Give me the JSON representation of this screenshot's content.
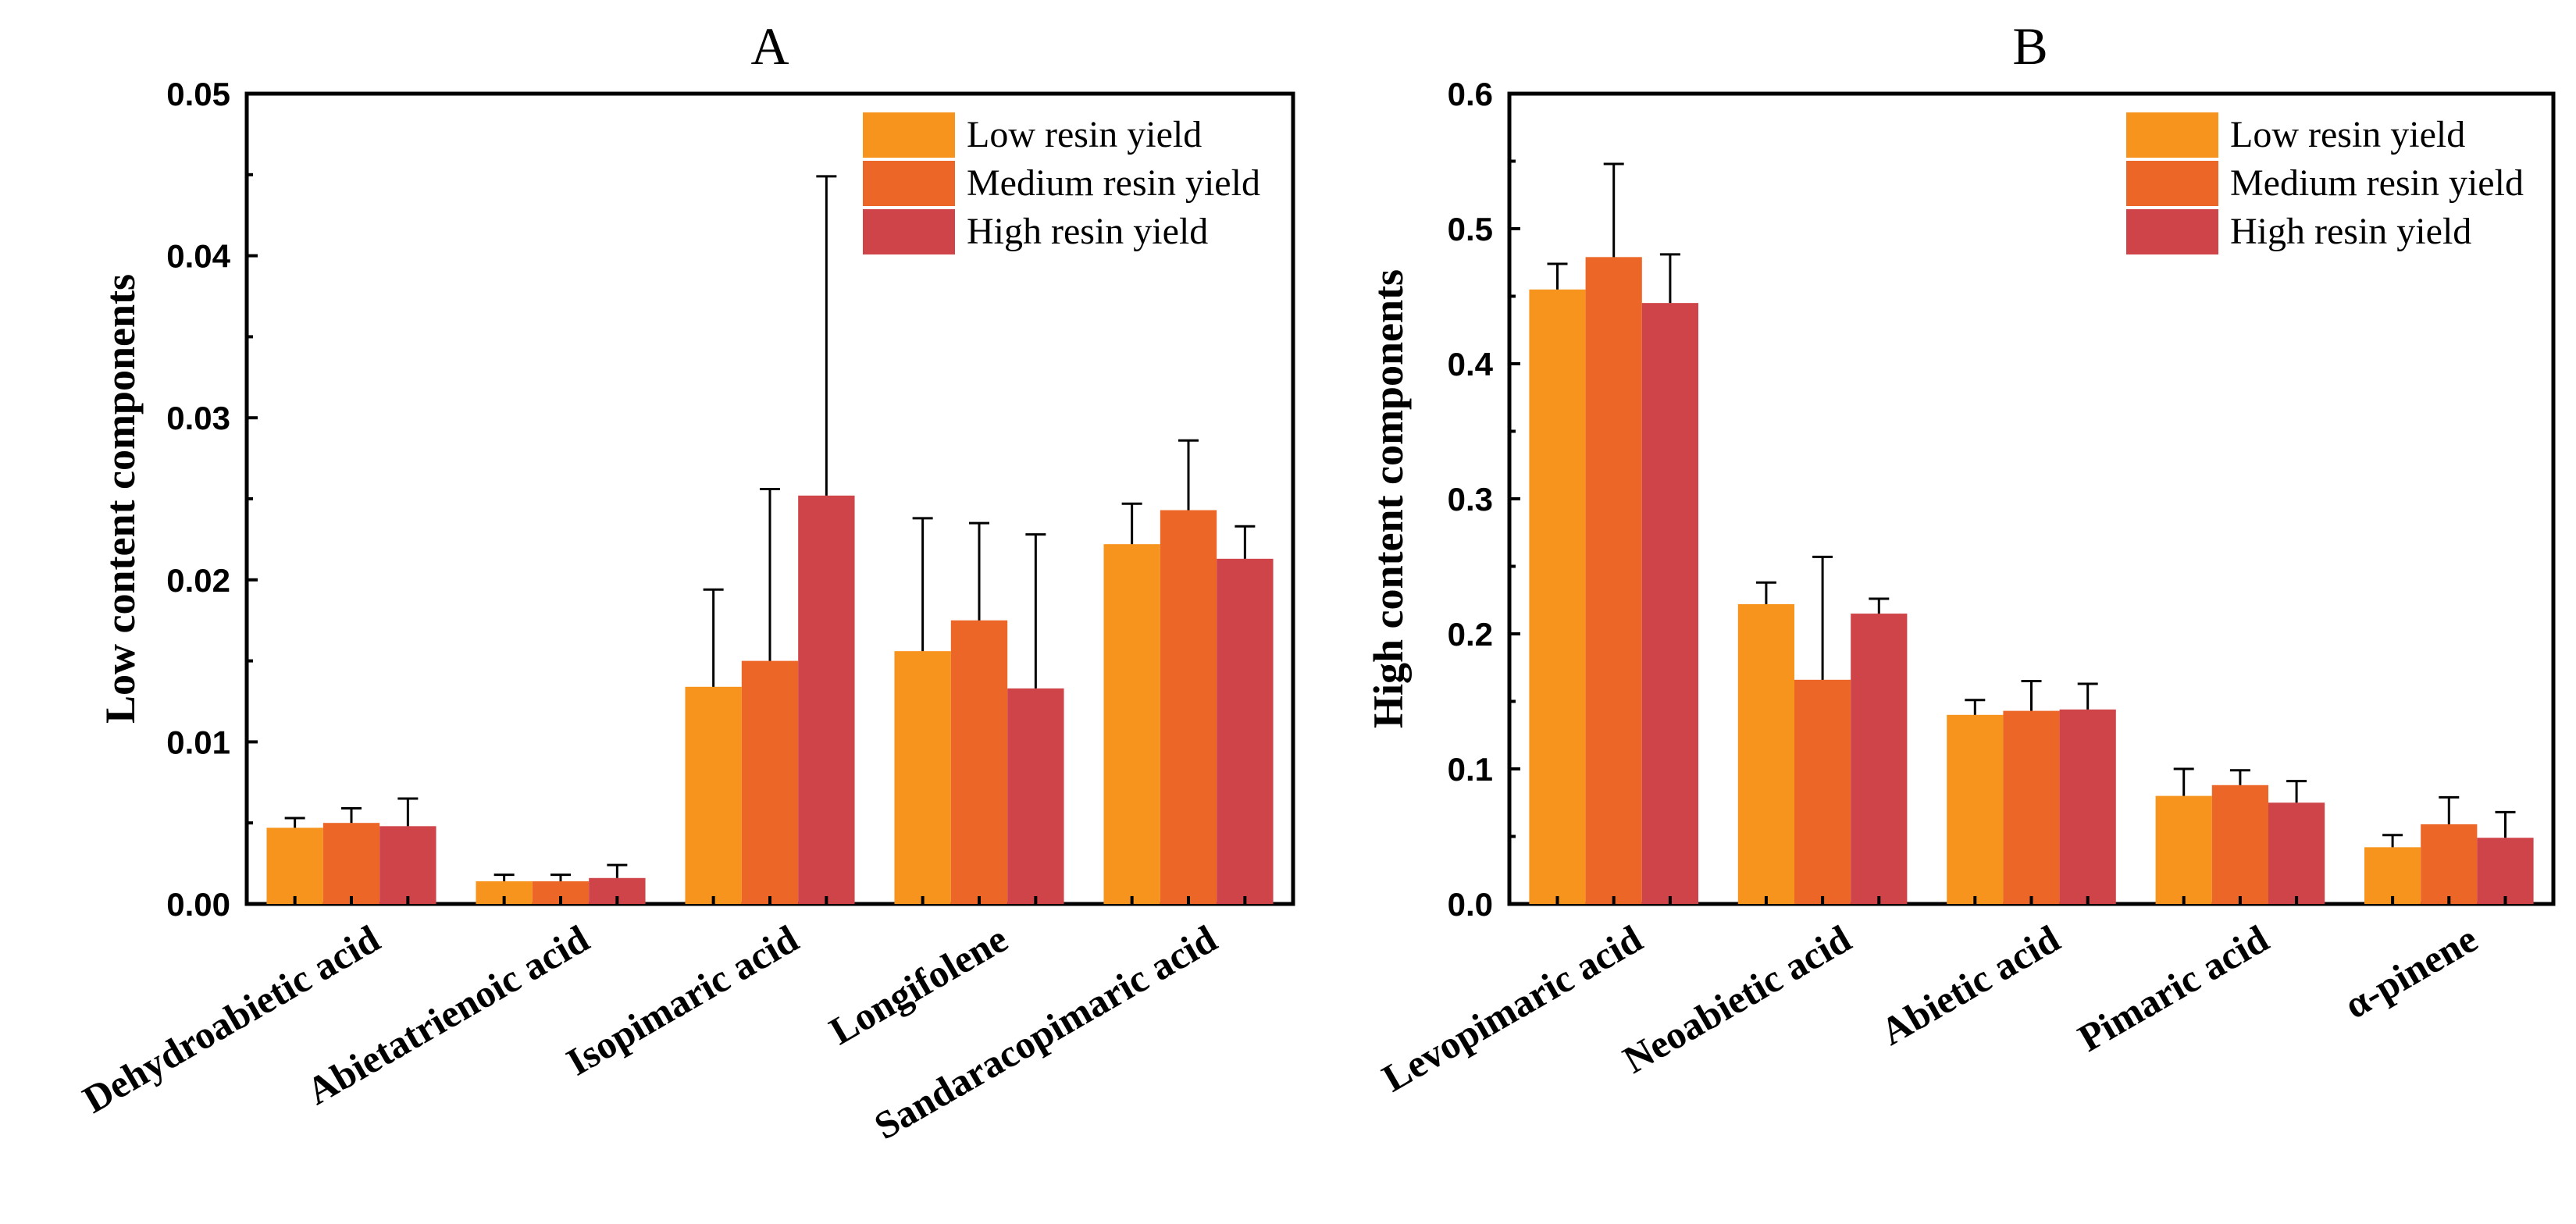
{
  "colors": {
    "low": "#F7941D",
    "medium": "#EB6627",
    "high": "#CF4449"
  },
  "chart_data": [
    {
      "type": "bar",
      "title": "A",
      "ylabel": "Low content components",
      "xlabel": "",
      "ylim": [
        0,
        0.05
      ],
      "yticks": [
        "0.00",
        "0.01",
        "0.02",
        "0.03",
        "0.04",
        "0.05"
      ],
      "yticks_values": [
        0,
        0.01,
        0.02,
        0.03,
        0.04,
        0.05
      ],
      "categories": [
        "Dehydroabietic acid",
        "Abietatrienoic acid",
        "Isopimaric acid",
        "Longifolene",
        "Sandaracopimaric acid"
      ],
      "series": [
        {
          "name": "Low resin yield",
          "color_key": "low",
          "values": [
            0.0047,
            0.0014,
            0.0134,
            0.0156,
            0.0222
          ],
          "errors": [
            0.0006,
            0.0004,
            0.006,
            0.0082,
            0.0025
          ]
        },
        {
          "name": "Medium resin yield",
          "color_key": "medium",
          "values": [
            0.005,
            0.0014,
            0.015,
            0.0175,
            0.0243
          ],
          "errors": [
            0.0009,
            0.0004,
            0.0106,
            0.006,
            0.0043
          ]
        },
        {
          "name": "High resin yield",
          "color_key": "high",
          "values": [
            0.0048,
            0.0016,
            0.0252,
            0.0133,
            0.0213
          ],
          "errors": [
            0.0017,
            0.0008,
            0.0197,
            0.0095,
            0.002
          ]
        }
      ],
      "legend": [
        "Low resin yield",
        "Medium resin yield",
        "High resin yield"
      ],
      "legend_position": "top-right"
    },
    {
      "type": "bar",
      "title": "B",
      "ylabel": "High content components",
      "xlabel": "",
      "ylim": [
        0,
        0.6
      ],
      "yticks": [
        "0.0",
        "0.1",
        "0.2",
        "0.3",
        "0.4",
        "0.5",
        "0.6"
      ],
      "yticks_values": [
        0,
        0.1,
        0.2,
        0.3,
        0.4,
        0.5,
        0.6
      ],
      "categories": [
        "Levopimaric acid",
        "Neoabietic acid",
        "Abietic acid",
        "Pimaric acid",
        "α-pinene"
      ],
      "series": [
        {
          "name": "Low resin yield",
          "color_key": "low",
          "values": [
            0.455,
            0.222,
            0.14,
            0.08,
            0.042
          ],
          "errors": [
            0.019,
            0.016,
            0.011,
            0.02,
            0.009
          ]
        },
        {
          "name": "Medium resin yield",
          "color_key": "medium",
          "values": [
            0.479,
            0.166,
            0.143,
            0.088,
            0.059
          ],
          "errors": [
            0.069,
            0.091,
            0.022,
            0.011,
            0.02
          ]
        },
        {
          "name": "High resin yield",
          "color_key": "high",
          "values": [
            0.445,
            0.215,
            0.144,
            0.075,
            0.049
          ],
          "errors": [
            0.036,
            0.011,
            0.019,
            0.016,
            0.019
          ]
        }
      ],
      "legend": [
        "Low resin yield",
        "Medium resin yield",
        "High resin yield"
      ],
      "legend_position": "top-right"
    }
  ]
}
